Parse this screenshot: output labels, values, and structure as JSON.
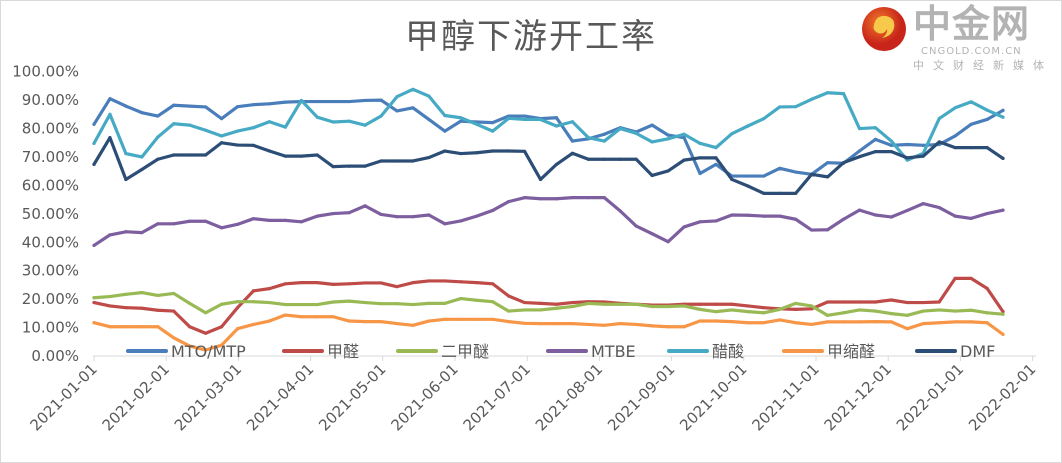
{
  "chart_data": {
    "type": "line",
    "title": "甲醇下游开工率",
    "xlabel": "",
    "ylabel": "",
    "ylim": [
      0,
      100
    ],
    "y_ticks": [
      "0.00%",
      "10.00%",
      "20.00%",
      "30.00%",
      "40.00%",
      "50.00%",
      "60.00%",
      "70.00%",
      "80.00%",
      "90.00%",
      "100.00%"
    ],
    "x_ticks": [
      "2021-01-01",
      "2021-02-01",
      "2021-03-01",
      "2021-04-01",
      "2021-05-01",
      "2021-06-01",
      "2021-07-01",
      "2021-08-01",
      "2021-09-01",
      "2021-10-01",
      "2021-11-01",
      "2021-12-01",
      "2022-01-01",
      "2022-02-01"
    ],
    "grid": false,
    "legend": "bottom",
    "series": [
      {
        "name": "MTO/MTP",
        "color": "#4a7ebb",
        "values": [
          81.5,
          90.5,
          87.9,
          85.6,
          84.4,
          88.2,
          87.9,
          87.6,
          83.5,
          87.7,
          88.4,
          88.7,
          89.3,
          89.5,
          89.5,
          89.5,
          89.5,
          89.9,
          90,
          86.2,
          87.3,
          83.2,
          79.1,
          82.6,
          82.3,
          82.1,
          84.4,
          84.4,
          83.5,
          83.8,
          75.6,
          76.4,
          78,
          80.3,
          78.8,
          81.2,
          77.7,
          76.8,
          64.2,
          67.4,
          63.3,
          63.3,
          63.3,
          66,
          64.7,
          63.9,
          68,
          67.8,
          72.1,
          76.2,
          74.1,
          74.4,
          74.1,
          74.4,
          77.4,
          81.5,
          83.2,
          86.4
        ]
      },
      {
        "name": "甲醛",
        "color": "#be4b48",
        "values": [
          18.8,
          17.6,
          17,
          16.8,
          16.1,
          15.8,
          10.3,
          8,
          10.3,
          17,
          22.9,
          23.7,
          25.4,
          25.8,
          25.8,
          25.2,
          25.4,
          25.7,
          25.7,
          24.4,
          25.8,
          26.4,
          26.4,
          26.1,
          25.8,
          25.4,
          21.1,
          18.8,
          18.5,
          18.2,
          18.8,
          19.1,
          19,
          18.5,
          18.2,
          17.9,
          17.9,
          18.2,
          18.2,
          18.2,
          18.2,
          17.6,
          17,
          16.6,
          16.4,
          16.6,
          19,
          19,
          19,
          19,
          19.7,
          18.8,
          18.8,
          19,
          27.3,
          27.3,
          23.8,
          15.6
        ]
      },
      {
        "name": "二甲醚",
        "color": "#98b954",
        "values": [
          20.5,
          20.9,
          21.7,
          22.3,
          21.3,
          22,
          18.5,
          15.2,
          18.2,
          19.1,
          19.1,
          18.8,
          18.1,
          18.1,
          18.1,
          19,
          19.3,
          18.8,
          18.4,
          18.4,
          18.1,
          18.5,
          18.5,
          20.2,
          19.6,
          19.1,
          15.8,
          16.2,
          16.2,
          16.8,
          17.4,
          18.5,
          18.2,
          18.2,
          18.2,
          17.4,
          17.4,
          17.6,
          16.4,
          15.6,
          16.2,
          15.6,
          15.2,
          16.4,
          18.5,
          17.6,
          14.3,
          15.2,
          16.2,
          15.8,
          14.9,
          14.3,
          15.8,
          16.2,
          15.8,
          16.1,
          15.2,
          14.7
        ]
      },
      {
        "name": "MTBE",
        "color": "#7d5fa0",
        "values": [
          38.9,
          42.6,
          43.7,
          43.4,
          46.5,
          46.5,
          47.4,
          47.4,
          45.1,
          46.3,
          48.3,
          47.7,
          47.7,
          47.2,
          49.2,
          50.1,
          50.4,
          52.8,
          49.8,
          49,
          49,
          49.6,
          46.5,
          47.5,
          49.2,
          51.2,
          54.3,
          55.7,
          55.3,
          55.3,
          55.7,
          55.7,
          55.7,
          51,
          45.7,
          43,
          40.2,
          45.4,
          47.2,
          47.5,
          49.6,
          49.5,
          49.2,
          49.2,
          48.1,
          44.3,
          44.4,
          48.1,
          51.3,
          49.6,
          48.9,
          51.2,
          53.6,
          52.2,
          49.2,
          48.4,
          50.1,
          51.3
        ]
      },
      {
        "name": "醋酸",
        "color": "#46aac5",
        "values": [
          74.8,
          85,
          71.2,
          70,
          77,
          81.7,
          81.2,
          79.4,
          77.4,
          79.1,
          80.3,
          82.4,
          80.5,
          89.9,
          84,
          82.3,
          82.6,
          81.2,
          84.4,
          91.2,
          93.8,
          91.4,
          84.6,
          83.8,
          81.5,
          79.1,
          83.6,
          83.2,
          83.2,
          80.9,
          82.4,
          76.8,
          75.6,
          80,
          78.3,
          75.3,
          76.4,
          78,
          74.8,
          73.3,
          78.2,
          80.9,
          83.5,
          87.6,
          87.7,
          90.3,
          92.6,
          92.3,
          80,
          80.3,
          75.6,
          68.9,
          71.3,
          83.5,
          87.3,
          89.4,
          86.5,
          84
        ]
      },
      {
        "name": "甲缩醛",
        "color": "#f79646",
        "values": [
          11.7,
          10.3,
          10.3,
          10.3,
          10.3,
          6.4,
          3.5,
          2.1,
          3.8,
          9.6,
          11.1,
          12.3,
          14.4,
          13.8,
          13.8,
          13.8,
          12.3,
          12.1,
          12.1,
          11.4,
          10.8,
          12.3,
          12.9,
          12.9,
          12.9,
          12.9,
          12.1,
          11.5,
          11.4,
          11.4,
          11.4,
          11.1,
          10.8,
          11.4,
          11.1,
          10.6,
          10.3,
          10.3,
          12.3,
          12.3,
          12.1,
          11.7,
          11.7,
          12.7,
          11.7,
          11.1,
          12,
          12,
          12,
          12.1,
          12,
          9.6,
          11.4,
          11.7,
          12,
          12,
          11.7,
          7.6
        ]
      },
      {
        "name": "DMF",
        "color": "#2c4d75",
        "values": [
          67.4,
          76.8,
          62.1,
          65.6,
          69.2,
          70.7,
          70.7,
          70.7,
          75,
          74.2,
          74.1,
          72.1,
          70.3,
          70.3,
          70.7,
          66.6,
          66.8,
          66.8,
          68.6,
          68.6,
          68.6,
          69.8,
          72.1,
          71.2,
          71.5,
          72.1,
          72.1,
          72,
          62.1,
          67.4,
          71.3,
          69.2,
          69.2,
          69.2,
          69.2,
          63.5,
          65.1,
          68.9,
          69.7,
          69.7,
          62.1,
          59.8,
          57.2,
          57.2,
          57.2,
          63.9,
          63,
          68,
          70.1,
          71.9,
          71.9,
          69.7,
          70.3,
          75.3,
          73.3,
          73.3,
          73.3,
          69.5
        ]
      }
    ]
  },
  "watermark": {
    "brand": "中金网",
    "domain": "CNGOLD.COM.CN",
    "slogan": "中文财经新媒体"
  }
}
